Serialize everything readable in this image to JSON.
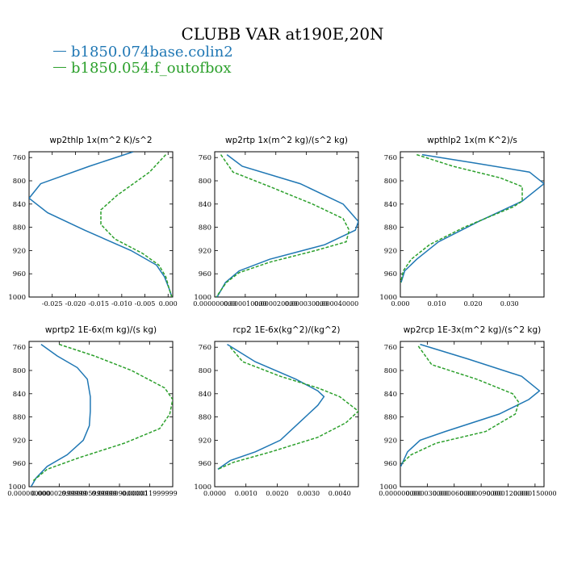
{
  "title": "CLUBB VAR at190E,20N",
  "legend": [
    {
      "label": "b1850.074base.colin2",
      "color": "#1f77b4"
    },
    {
      "label": "b1850.054.f_outofbox",
      "color": "#2ca02c"
    }
  ],
  "chart_data": [
    {
      "type": "line",
      "title": "wp2thlp   1x(m^2 K)/s^2",
      "yreverse": true,
      "ylim": [
        750,
        1000
      ],
      "yticks": [
        "760",
        "800",
        "840",
        "880",
        "920",
        "960",
        "1000"
      ],
      "xlim": [
        -0.03,
        0.001
      ],
      "xticks": [
        {
          "v": -0.025,
          "label": "-0.025"
        },
        {
          "v": -0.02,
          "label": "-0.020"
        },
        {
          "v": -0.015,
          "label": "-0.015"
        },
        {
          "v": -0.01,
          "label": "-0.010"
        },
        {
          "v": -0.005,
          "label": "-0.005"
        },
        {
          "v": 0.0,
          "label": "0.000"
        }
      ],
      "series": [
        {
          "name": "b1850.074base.colin2",
          "color": "#1f77b4",
          "dash": "",
          "x": [
            -0.0075,
            -0.017,
            -0.0275,
            -0.03,
            -0.026,
            -0.018,
            -0.008,
            -0.0025,
            -0.0008,
            0.0002,
            0.0008
          ],
          "y": [
            750,
            775,
            805,
            830,
            855,
            885,
            920,
            945,
            965,
            985,
            1000
          ]
        },
        {
          "name": "b1850.054.f_outofbox",
          "color": "#2ca02c",
          "dash": "4,2",
          "x": [
            -0.0005,
            -0.004,
            -0.011,
            -0.0145,
            -0.0145,
            -0.0115,
            -0.0055,
            -0.002,
            -0.0005,
            0.0002,
            0.0008
          ],
          "y": [
            755,
            785,
            825,
            850,
            875,
            900,
            925,
            945,
            965,
            985,
            1000
          ]
        }
      ]
    },
    {
      "type": "line",
      "title": "wp2rtp   1x(m^2 kg)/(s^2 kg)",
      "yreverse": true,
      "ylim": [
        750,
        1000
      ],
      "yticks": [
        "760",
        "800",
        "840",
        "880",
        "920",
        "960",
        "1000"
      ],
      "xlim": [
        0,
        4.7e-05
      ],
      "xticks": [
        {
          "v": 0.0,
          "label": "0.000000000"
        },
        {
          "v": 1e-05,
          "label": "0.000010000"
        },
        {
          "v": 2e-05,
          "label": "0.000020000"
        },
        {
          "v": 3e-05,
          "label": "0.000030000"
        },
        {
          "v": 4e-05,
          "label": "0.000040000"
        }
      ],
      "series": [
        {
          "name": "b1850.074base.colin2",
          "color": "#1f77b4",
          "dash": "",
          "x": [
            4e-06,
            9e-06,
            2.8e-05,
            4.2e-05,
            4.7e-05,
            4.6e-05,
            3.6e-05,
            1.8e-05,
            8e-06,
            3.5e-06,
            8e-07
          ],
          "y": [
            755,
            775,
            805,
            840,
            870,
            885,
            910,
            935,
            955,
            975,
            1000
          ]
        },
        {
          "name": "b1850.054.f_outofbox",
          "color": "#2ca02c",
          "dash": "4,2",
          "x": [
            2e-06,
            6e-06,
            1.8e-05,
            3.2e-05,
            4.2e-05,
            4.4e-05,
            4.3e-05,
            3.3e-05,
            1.8e-05,
            8e-06,
            3.8e-06,
            5e-07
          ],
          "y": [
            755,
            785,
            810,
            840,
            865,
            885,
            905,
            920,
            940,
            958,
            975,
            1000
          ]
        }
      ]
    },
    {
      "type": "line",
      "title": "wpthlp2   1x(m K^2)/s",
      "yreverse": true,
      "ylim": [
        750,
        1000
      ],
      "yticks": [
        "760",
        "800",
        "840",
        "880",
        "920",
        "960",
        "1000"
      ],
      "xlim": [
        0,
        0.0395
      ],
      "xticks": [
        {
          "v": 0.0,
          "label": "0.000"
        },
        {
          "v": 0.01,
          "label": "0.010"
        },
        {
          "v": 0.02,
          "label": "0.020"
        },
        {
          "v": 0.03,
          "label": "0.030"
        }
      ],
      "series": [
        {
          "name": "b1850.074base.colin2",
          "color": "#1f77b4",
          "dash": "",
          "x": [
            0.006,
            0.021,
            0.0355,
            0.0395,
            0.0335,
            0.0215,
            0.0105,
            0.0045,
            0.0012,
            0.0002
          ],
          "y": [
            755,
            770,
            785,
            805,
            835,
            870,
            905,
            935,
            955,
            975
          ]
        },
        {
          "name": "b1850.054.f_outofbox",
          "color": "#2ca02c",
          "dash": "4,2",
          "x": [
            0.0045,
            0.0145,
            0.0275,
            0.0335,
            0.0335,
            0.031,
            0.0175,
            0.008,
            0.003,
            0.0008,
            0.0001
          ],
          "y": [
            755,
            775,
            795,
            810,
            835,
            845,
            880,
            910,
            935,
            955,
            975
          ]
        }
      ]
    },
    {
      "type": "line",
      "title": "wprtp2   1E-6x(m kg)/(s kg)",
      "yreverse": true,
      "ylim": [
        750,
        1000
      ],
      "yticks": [
        "760",
        "800",
        "840",
        "880",
        "920",
        "960",
        "1000"
      ],
      "xlim": [
        0,
        1.43e-05
      ],
      "xticks": [
        {
          "v": 0.0,
          "label": "0.000000000"
        },
        {
          "v": 3e-06,
          "label": "0.000002999999"
        },
        {
          "v": 6e-06,
          "label": "0.000005999999"
        },
        {
          "v": 9e-06,
          "label": "0.000009000000"
        },
        {
          "v": 1.2e-05,
          "label": "0.000011999999"
        }
      ],
      "series": [
        {
          "name": "b1850.074base.colin2",
          "color": "#1f77b4",
          "dash": "",
          "x": [
            1.2e-06,
            2.8e-06,
            4.8e-06,
            5.8e-06,
            6.1e-06,
            6.1e-06,
            6e-06,
            5.4e-06,
            3.8e-06,
            1.8e-06,
            7e-07,
            2e-07
          ],
          "y": [
            755,
            775,
            795,
            815,
            845,
            870,
            895,
            920,
            945,
            965,
            985,
            1000
          ]
        },
        {
          "name": "b1850.054.f_outofbox",
          "color": "#2ca02c",
          "dash": "4,2",
          "x": [
            3e-06,
            6.5e-06,
            1.02e-05,
            1.35e-05,
            1.43e-05,
            1.4e-05,
            1.3e-05,
            9.5e-06,
            5e-06,
            1.8e-06,
            4e-07
          ],
          "y": [
            755,
            775,
            800,
            830,
            850,
            875,
            900,
            925,
            950,
            970,
            990
          ]
        }
      ]
    },
    {
      "type": "line",
      "title": "rcp2   1E-6x(kg^2)/(kg^2)",
      "yreverse": true,
      "ylim": [
        750,
        1000
      ],
      "yticks": [
        "760",
        "800",
        "840",
        "880",
        "920",
        "960",
        "1000"
      ],
      "xlim": [
        0,
        0.0046
      ],
      "xticks": [
        {
          "v": 0.0,
          "label": "0.0000"
        },
        {
          "v": 0.001,
          "label": "0.0010"
        },
        {
          "v": 0.002,
          "label": "0.0020"
        },
        {
          "v": 0.003,
          "label": "0.0030"
        },
        {
          "v": 0.004,
          "label": "0.0040"
        }
      ],
      "series": [
        {
          "name": "b1850.074base.colin2",
          "color": "#1f77b4",
          "dash": "",
          "x": [
            0.0004,
            0.0013,
            0.0026,
            0.0033,
            0.0035,
            0.0033,
            0.0027,
            0.0021,
            0.0013,
            0.0005,
            0.0001
          ],
          "y": [
            755,
            785,
            815,
            835,
            845,
            860,
            890,
            920,
            940,
            955,
            970
          ]
        },
        {
          "name": "b1850.054.f_outofbox",
          "color": "#2ca02c",
          "dash": "4,2",
          "x": [
            0.0005,
            0.0009,
            0.0021,
            0.0033,
            0.004,
            0.0046,
            0.0042,
            0.0033,
            0.0018,
            0.0006,
            0.0001
          ],
          "y": [
            760,
            785,
            810,
            830,
            845,
            870,
            890,
            915,
            940,
            958,
            970
          ]
        }
      ]
    },
    {
      "type": "line",
      "title": "wp2rcp   1E-3x(m^2 kg)/(s^2 kg)",
      "yreverse": true,
      "ylim": [
        750,
        1000
      ],
      "yticks": [
        "760",
        "800",
        "840",
        "880",
        "920",
        "960",
        "1000"
      ],
      "xlim": [
        0,
        0.00016
      ],
      "xticks": [
        {
          "v": 0.0,
          "label": "0.000000000"
        },
        {
          "v": 3e-05,
          "label": "0.000030000"
        },
        {
          "v": 6e-05,
          "label": "0.000060000"
        },
        {
          "v": 9e-05,
          "label": "0.000090000"
        },
        {
          "v": 0.00012,
          "label": "0.000120000"
        },
        {
          "v": 0.00015,
          "label": "0.000150000"
        }
      ],
      "series": [
        {
          "name": "b1850.074base.colin2",
          "color": "#1f77b4",
          "dash": "",
          "x": [
            2.2e-05,
            7.5e-05,
            0.000135,
            0.000155,
            0.000143,
            0.00011,
            5e-05,
            2.2e-05,
            8e-06,
            5e-07
          ],
          "y": [
            755,
            780,
            810,
            835,
            850,
            875,
            905,
            920,
            940,
            965
          ]
        },
        {
          "name": "b1850.054.f_outofbox",
          "color": "#2ca02c",
          "dash": "4,2",
          "x": [
            2e-05,
            3.5e-05,
            8.5e-05,
            0.000125,
            0.000132,
            0.000128,
            9.5e-05,
            4e-05,
            1.2e-05,
            1.5e-06
          ],
          "y": [
            758,
            790,
            815,
            840,
            855,
            875,
            905,
            925,
            945,
            960
          ]
        }
      ]
    }
  ]
}
